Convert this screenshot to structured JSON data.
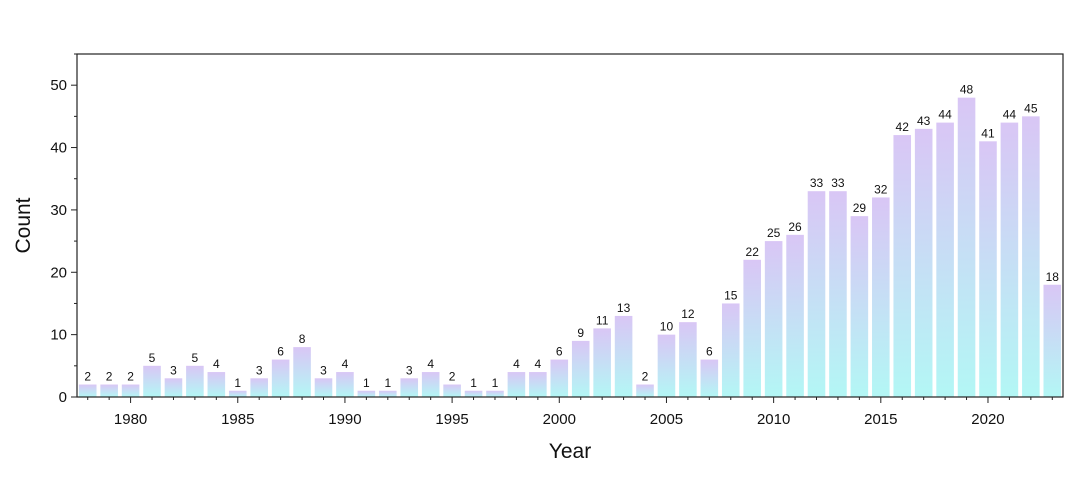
{
  "chart_data": {
    "type": "bar",
    "title": "",
    "xlabel": "Year",
    "ylabel": "Count",
    "ylim": [
      0,
      55
    ],
    "yticks": [
      0,
      10,
      20,
      30,
      40,
      50
    ],
    "xlim": [
      1977.5,
      2023.5
    ],
    "xticks": [
      1980,
      1985,
      1990,
      1995,
      2000,
      2005,
      2010,
      2015,
      2020
    ],
    "grid": false,
    "bar_gradient": {
      "top": "#d9c6f5",
      "bottom": "#b3f7f5"
    },
    "categories": [
      1978,
      1979,
      1980,
      1981,
      1982,
      1983,
      1984,
      1985,
      1986,
      1987,
      1988,
      1989,
      1990,
      1991,
      1992,
      1993,
      1994,
      1995,
      1996,
      1997,
      1998,
      1999,
      2000,
      2001,
      2002,
      2003,
      2004,
      2005,
      2006,
      2007,
      2008,
      2009,
      2010,
      2011,
      2012,
      2013,
      2014,
      2015,
      2016,
      2017,
      2018,
      2019,
      2020,
      2021,
      2022,
      2023
    ],
    "values": [
      2,
      2,
      2,
      5,
      3,
      5,
      4,
      1,
      3,
      6,
      8,
      3,
      4,
      1,
      1,
      3,
      4,
      2,
      1,
      1,
      4,
      4,
      6,
      9,
      11,
      13,
      2,
      10,
      12,
      6,
      15,
      22,
      25,
      26,
      33,
      33,
      29,
      32,
      42,
      43,
      44,
      48,
      41,
      44,
      45,
      18
    ]
  }
}
